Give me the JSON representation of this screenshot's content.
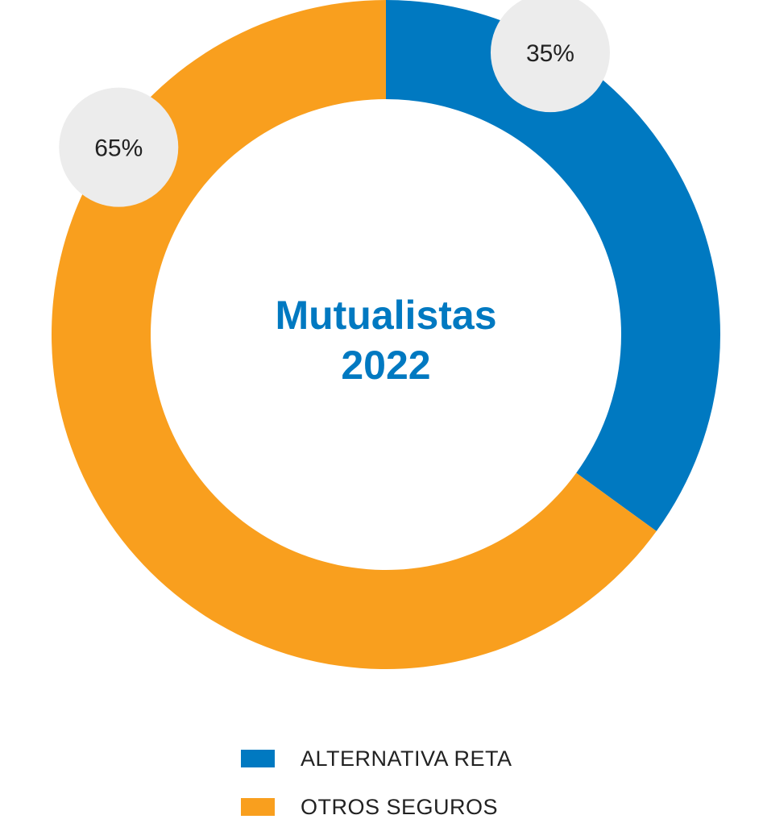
{
  "chart_data": {
    "type": "pie",
    "variant": "donut",
    "title_lines": [
      "Mutualistas",
      "2022"
    ],
    "title_color": "#0079c1",
    "series": [
      {
        "name": "ALTERNATIVA RETA",
        "value": 35,
        "label": "35%",
        "color": "#0079c1"
      },
      {
        "name": "OTROS SEGUROS",
        "value": 65,
        "label": "65%",
        "color": "#f99f1e"
      }
    ],
    "label_bubble_color": "#ececec",
    "legend_position": "bottom"
  }
}
